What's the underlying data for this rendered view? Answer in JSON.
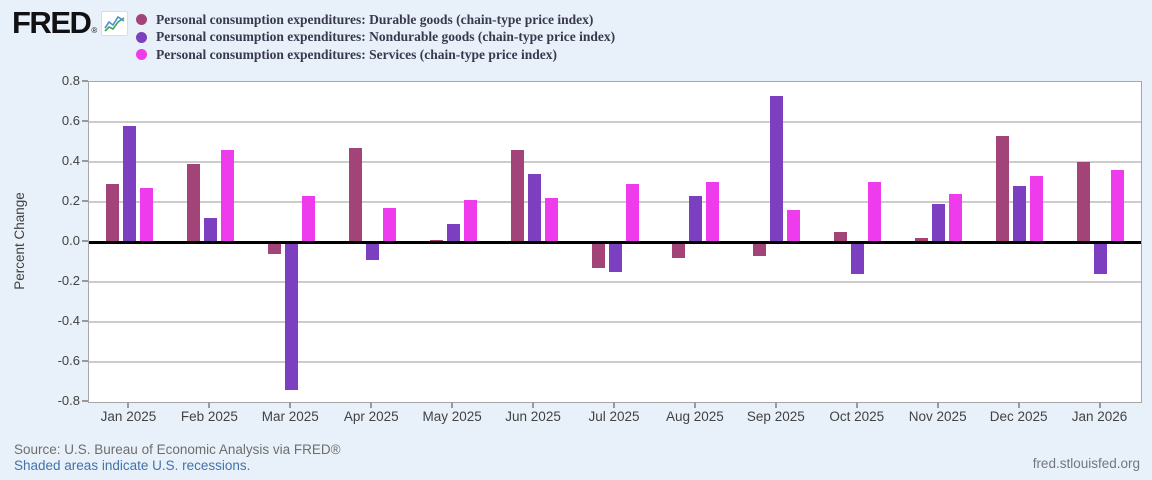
{
  "branding": {
    "logo_text": "FRED",
    "logo_reg": "®"
  },
  "chart_data": {
    "type": "bar",
    "categories": [
      "Jan 2025",
      "Feb 2025",
      "Mar 2025",
      "Apr 2025",
      "May 2025",
      "Jun 2025",
      "Jul 2025",
      "Aug 2025",
      "Sep 2025",
      "Oct 2025",
      "Nov 2025",
      "Dec 2025",
      "Jan 2026"
    ],
    "series": [
      {
        "key": "durable-goods",
        "name": "Personal consumption expenditures: Durable goods (chain-type price index)",
        "color": "#a34479",
        "values": [
          0.29,
          0.39,
          -0.06,
          0.47,
          0.01,
          0.46,
          -0.13,
          -0.08,
          -0.07,
          0.05,
          0.02,
          0.53,
          0.4
        ]
      },
      {
        "key": "nondurable-goods",
        "name": "Personal consumption expenditures: Nondurable goods (chain-type price index)",
        "color": "#7b3fc0",
        "values": [
          0.58,
          0.12,
          -0.74,
          -0.09,
          0.09,
          0.34,
          -0.15,
          0.23,
          0.73,
          -0.16,
          0.19,
          0.28,
          -0.16
        ]
      },
      {
        "key": "services",
        "name": "Personal consumption expenditures: Services (chain-type price index)",
        "color": "#ee3cec",
        "values": [
          0.27,
          0.46,
          0.23,
          0.17,
          0.21,
          0.22,
          0.29,
          0.3,
          0.16,
          0.3,
          0.24,
          0.33,
          0.36
        ]
      }
    ],
    "ylabel": "Percent Change",
    "ylim": [
      -0.8,
      0.8
    ],
    "ytick_step": 0.2,
    "grid": true,
    "legend_position": "top-left"
  },
  "footer": {
    "source": "Source: U.S. Bureau of Economic Analysis via FRED®",
    "recession_note": "Shaded areas indicate U.S. recessions.",
    "site": "fred.stlouisfed.org"
  },
  "colors": {
    "background": "#e8f1fa",
    "plot_border": "#a6a6a6",
    "gridline": "#cccccc",
    "zero_line": "#000000",
    "axis_text": "#424242",
    "source_text": "#6e6e6e",
    "link_text": "#4472a8",
    "site_text": "#75757d"
  }
}
